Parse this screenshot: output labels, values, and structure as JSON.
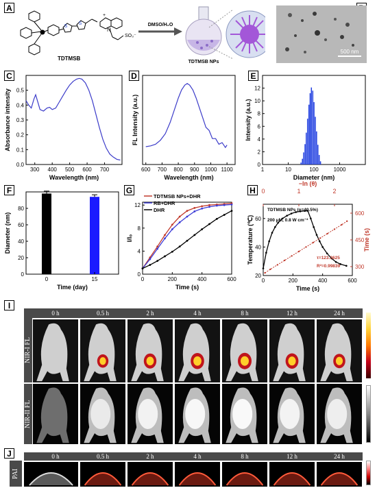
{
  "labels": {
    "A": "A",
    "B": "B",
    "C": "C",
    "D": "D",
    "E": "E",
    "F": "F",
    "G": "G",
    "H": "H",
    "I": "I",
    "J": "J"
  },
  "panelA": {
    "molecule_name": "TDTMSB",
    "reaction_condition": "DMSO/H₂O",
    "np_name": "TDTMSB NPs",
    "sulfonate": "SO₃⁻",
    "charge": "+"
  },
  "panelB": {
    "scalebar": "500 nm"
  },
  "chart_data": [
    {
      "panel": "C",
      "type": "line",
      "xlabel": "Wavelength (nm)",
      "ylabel": "Absorbance intensity",
      "xlim": [
        250,
        800
      ],
      "ylim": [
        0,
        0.6
      ],
      "xticks": [
        300,
        400,
        500,
        600,
        700
      ],
      "yticks": [
        0.0,
        0.1,
        0.2,
        0.3,
        0.4,
        0.5
      ],
      "color": "#3b3bc9",
      "x": [
        250,
        265,
        280,
        295,
        305,
        315,
        330,
        350,
        370,
        385,
        400,
        420,
        440,
        460,
        480,
        500,
        520,
        540,
        555,
        570,
        590,
        610,
        630,
        650,
        670,
        690,
        710,
        730,
        750,
        770,
        790
      ],
      "y": [
        0.43,
        0.4,
        0.38,
        0.44,
        0.47,
        0.43,
        0.37,
        0.36,
        0.38,
        0.385,
        0.37,
        0.38,
        0.42,
        0.46,
        0.5,
        0.535,
        0.56,
        0.575,
        0.58,
        0.575,
        0.55,
        0.5,
        0.43,
        0.34,
        0.25,
        0.17,
        0.11,
        0.07,
        0.05,
        0.035,
        0.03
      ]
    },
    {
      "panel": "D",
      "type": "line",
      "xlabel": "Wavelength (nm)",
      "ylabel": "FL Intensity (a.u.)",
      "xlim": [
        580,
        1150
      ],
      "xticks": [
        600,
        700,
        800,
        900,
        1000,
        1100
      ],
      "color": "#3b3bc9",
      "x": [
        600,
        630,
        660,
        690,
        720,
        750,
        780,
        800,
        820,
        840,
        855,
        870,
        890,
        910,
        930,
        950,
        970,
        990,
        1010,
        1030,
        1050,
        1070,
        1090,
        1100
      ],
      "y": [
        0.22,
        0.23,
        0.25,
        0.3,
        0.38,
        0.52,
        0.7,
        0.82,
        0.92,
        0.98,
        1.0,
        0.98,
        0.92,
        0.82,
        0.7,
        0.58,
        0.48,
        0.4,
        0.34,
        0.3,
        0.27,
        0.25,
        0.23,
        0.22
      ]
    },
    {
      "panel": "E",
      "type": "bar",
      "xlabel": "Diameter (nm)",
      "ylabel": "Intensity (a.u.)",
      "xscale": "log",
      "xlim": [
        1,
        10000
      ],
      "ylim": [
        0,
        14
      ],
      "xticks": [
        1,
        10,
        100,
        1000
      ],
      "yticks": [
        0,
        2,
        4,
        6,
        8,
        10,
        12
      ],
      "color": "#1f3ee0",
      "x": [
        30,
        34,
        38,
        43,
        48,
        54,
        61,
        68,
        76,
        86,
        96,
        108,
        121,
        136,
        153,
        172
      ],
      "values": [
        0.3,
        0.9,
        1.9,
        3.2,
        5.0,
        7.2,
        9.4,
        11.2,
        12.1,
        11.6,
        9.8,
        7.5,
        5.2,
        3.1,
        1.5,
        0.5
      ]
    },
    {
      "panel": "F",
      "type": "bar",
      "xlabel": "Time (day)",
      "ylabel": "Diameter (nm)",
      "categories": [
        "0",
        "15"
      ],
      "values": [
        98,
        94
      ],
      "errors": [
        3,
        2.5
      ],
      "colors": [
        "#000000",
        "#1a1aff"
      ],
      "ylim": [
        0,
        100
      ],
      "yticks": [
        0,
        20,
        40,
        60,
        80
      ]
    },
    {
      "panel": "G",
      "type": "line",
      "xlabel": "Time (s)",
      "ylabel": "I/I₀",
      "xlim": [
        0,
        600
      ],
      "ylim": [
        0,
        12.5
      ],
      "xticks": [
        0,
        200,
        400,
        600
      ],
      "yticks": [
        0,
        4,
        8,
        12
      ],
      "x": [
        0,
        50,
        100,
        150,
        200,
        250,
        300,
        350,
        400,
        450,
        500,
        550,
        600
      ],
      "series": [
        {
          "name": "TDTMSB NPs+DHR",
          "color": "#c0392b",
          "values": [
            1.0,
            2.9,
            4.8,
            6.8,
            8.6,
            10.0,
            11.0,
            11.5,
            11.8,
            12.0,
            12.1,
            12.2,
            12.3
          ]
        },
        {
          "name": "RB+DHR",
          "color": "#3b3bd6",
          "values": [
            1.0,
            2.6,
            4.4,
            6.2,
            7.8,
            9.0,
            10.0,
            10.9,
            11.4,
            11.7,
            11.9,
            12.0,
            12.1
          ]
        },
        {
          "name": "DHR",
          "color": "#000000",
          "values": [
            1.0,
            1.6,
            2.3,
            3.1,
            3.9,
            4.8,
            5.8,
            6.8,
            7.8,
            8.7,
            9.6,
            10.3,
            11.0
          ]
        }
      ]
    },
    {
      "panel": "H",
      "type": "line",
      "xlabel": "Time (s)",
      "ylabel": "Temperature (℃)",
      "y2label": "Time (s)",
      "top_xlabel": "−ln (θ)",
      "xlim": [
        0,
        600
      ],
      "ylim": [
        20,
        70
      ],
      "y2lim": [
        250,
        650
      ],
      "toplim": [
        0,
        2.5
      ],
      "xticks": [
        0,
        200,
        400,
        600
      ],
      "yticks": [
        20,
        40,
        60
      ],
      "y2ticks": [
        300,
        450,
        600
      ],
      "topticks": [
        0,
        1,
        2
      ],
      "annotation": "TDTMSB NPs (η=40.5%)",
      "annotation2": "200 μM, 0.8 W cm⁻²",
      "fit_tau": "τ=123.3625",
      "fit_r2": "R²=0.99839",
      "x": [
        0,
        20,
        40,
        60,
        80,
        100,
        130,
        160,
        190,
        220,
        250,
        280,
        300,
        320,
        340,
        360,
        380,
        400,
        430,
        460,
        490,
        520,
        560
      ],
      "series": [
        {
          "name": "Temperature",
          "color": "#000000",
          "values": [
            25,
            36,
            44,
            50,
            54,
            57,
            60,
            62,
            63.5,
            64.5,
            65,
            65.3,
            65.4,
            60,
            54,
            48.5,
            44,
            40,
            35.5,
            32,
            29.5,
            28,
            26.8
          ]
        }
      ],
      "fit": {
        "color": "#c0392b",
        "x": [
          0.05,
          0.2,
          0.4,
          0.6,
          0.8,
          1.0,
          1.2,
          1.4,
          1.6,
          1.8,
          2.0,
          2.2,
          2.35
        ],
        "values": [
          265,
          285,
          310,
          335,
          360,
          385,
          410,
          435,
          460,
          485,
          510,
          535,
          555
        ]
      }
    }
  ],
  "panelI": {
    "times": [
      "0 h",
      "0.5 h",
      "2 h",
      "4 h",
      "8 h",
      "12 h",
      "24 h"
    ],
    "row1_label": "NIR-I FL",
    "row2_label": "NIR-II FL",
    "signal": [
      0,
      0.55,
      0.8,
      0.95,
      1.0,
      0.85,
      0.7
    ]
  },
  "panelJ": {
    "times": [
      "0 h",
      "0.5 h",
      "2 h",
      "4 h",
      "8 h",
      "12 h",
      "24 h"
    ],
    "row_label": "PAI"
  }
}
